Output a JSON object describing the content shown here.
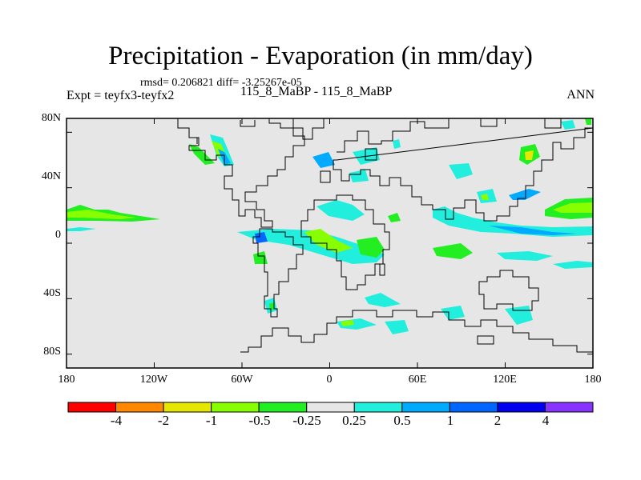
{
  "plot": {
    "title": "Precipitation - Evaporation (in mm/day)",
    "stats": "rmsd= 0.206821 diff= -3.25267e-05",
    "experiment_label": "Expt = teyfx3-teyfx2",
    "experiment_name": "115_8_MaBP - 115_8_MaBP",
    "season": "ANN"
  },
  "axes": {
    "lat_labels": [
      "80N",
      "40N",
      "0",
      "40S",
      "80S"
    ],
    "lat_values": [
      80,
      40,
      0,
      -40,
      -80
    ],
    "lon_labels": [
      "180",
      "120W",
      "60W",
      "0",
      "60E",
      "120E",
      "180"
    ],
    "lon_values": [
      -180,
      -120,
      -60,
      0,
      60,
      120,
      180
    ],
    "lat_range": [
      -90,
      90
    ],
    "lon_range": [
      -180,
      180
    ]
  },
  "colorbar": {
    "colors": [
      "#ff0000",
      "#ff8800",
      "#e6e600",
      "#88ff00",
      "#22ee22",
      "#e6e6e6",
      "#22eedd",
      "#00aaff",
      "#0066ff",
      "#0000ee",
      "#8833ff"
    ],
    "labels": [
      "-4",
      "-2",
      "-1",
      "-0.5",
      "-0.25",
      "0.25",
      "0.5",
      "1",
      "2",
      "4"
    ]
  },
  "colors": {
    "background": "#e6e6e6",
    "coast": "#000000"
  }
}
